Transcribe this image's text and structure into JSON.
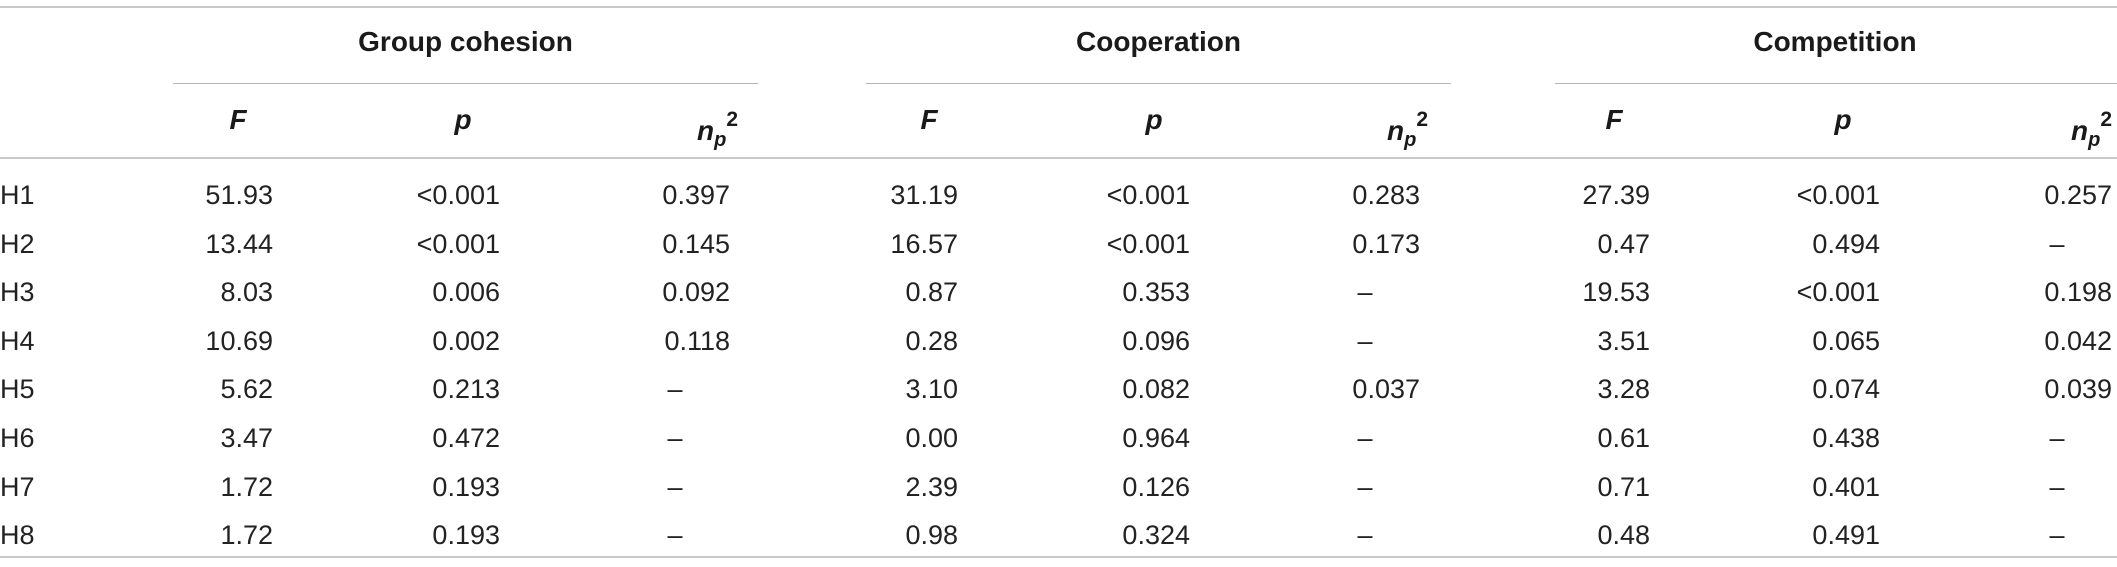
{
  "groups": [
    {
      "title": "Group cohesion"
    },
    {
      "title": "Cooperation"
    },
    {
      "title": "Competition"
    }
  ],
  "subheaders": {
    "f": "F",
    "p": "p",
    "eta_base": "n",
    "eta_sub": "p",
    "eta_sup": "2"
  },
  "rows": [
    {
      "label": "H1",
      "values": [
        "51.93",
        "<0.001",
        "0.397",
        "31.19",
        "<0.001",
        "0.283",
        "27.39",
        "<0.001",
        "0.257"
      ]
    },
    {
      "label": "H2",
      "values": [
        "13.44",
        "<0.001",
        "0.145",
        "16.57",
        "<0.001",
        "0.173",
        "0.47",
        "0.494",
        "–"
      ]
    },
    {
      "label": "H3",
      "values": [
        "8.03",
        "0.006",
        "0.092",
        "0.87",
        "0.353",
        "–",
        "19.53",
        "<0.001",
        "0.198"
      ]
    },
    {
      "label": "H4",
      "values": [
        "10.69",
        "0.002",
        "0.118",
        "0.28",
        "0.096",
        "–",
        "3.51",
        "0.065",
        "0.042"
      ]
    },
    {
      "label": "H5",
      "values": [
        "5.62",
        "0.213",
        "–",
        "3.10",
        "0.082",
        "0.037",
        "3.28",
        "0.074",
        "0.039"
      ]
    },
    {
      "label": "H6",
      "values": [
        "3.47",
        "0.472",
        "–",
        "0.00",
        "0.964",
        "–",
        "0.61",
        "0.438",
        "–"
      ]
    },
    {
      "label": "H7",
      "values": [
        "1.72",
        "0.193",
        "–",
        "2.39",
        "0.126",
        "–",
        "0.71",
        "0.401",
        "–"
      ]
    },
    {
      "label": "H8",
      "values": [
        "1.72",
        "0.193",
        "–",
        "0.98",
        "0.324",
        "–",
        "0.48",
        "0.491",
        "–"
      ]
    }
  ]
}
